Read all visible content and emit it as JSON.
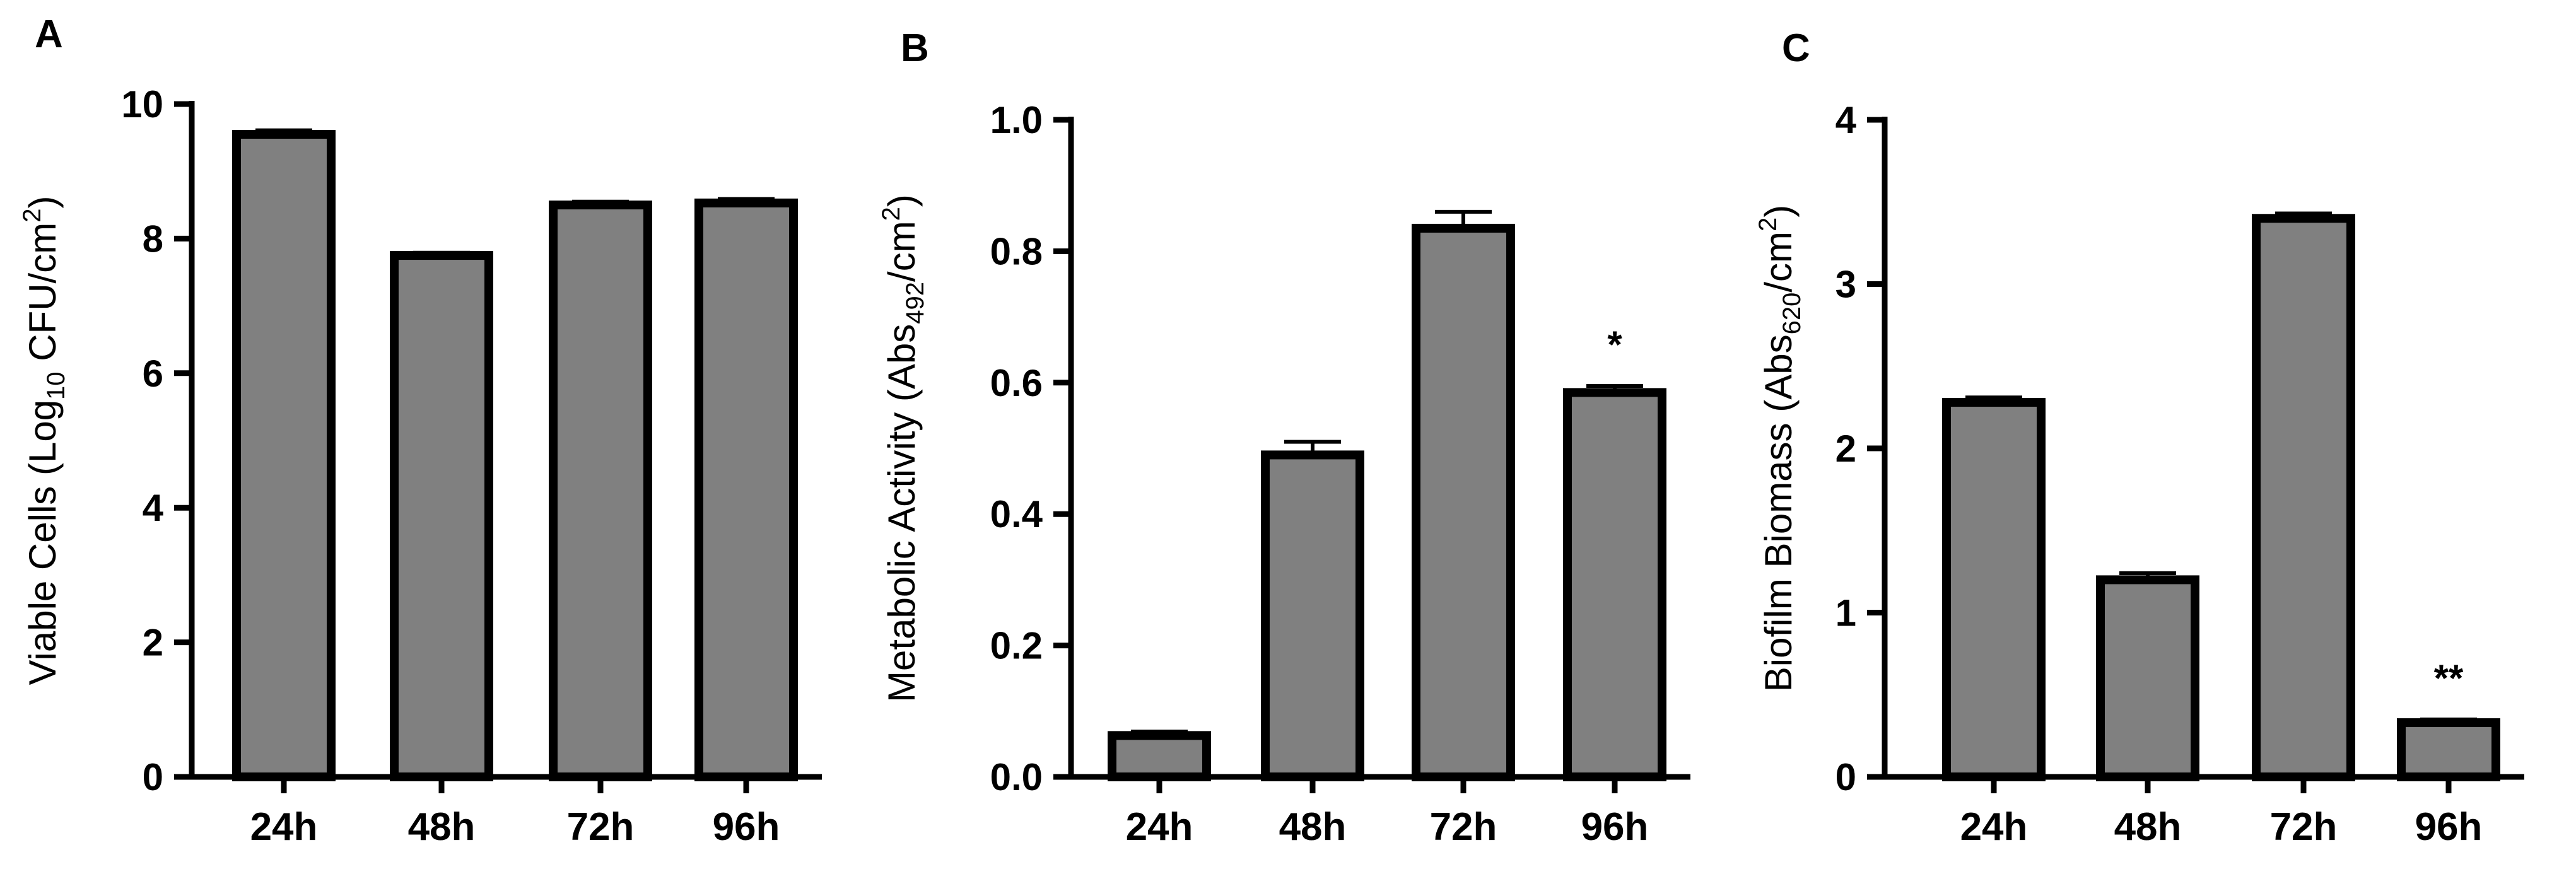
{
  "chart_data": [
    {
      "panel": "A",
      "type": "bar",
      "categories": [
        "24h",
        "48h",
        "72h",
        "96h"
      ],
      "values": [
        9.55,
        7.75,
        8.5,
        8.53
      ],
      "errors": [
        0.06,
        0.04,
        0.05,
        0.06
      ],
      "ylim": [
        0,
        10
      ],
      "yticks": [
        "0",
        "2",
        "4",
        "6",
        "8",
        "10"
      ],
      "ytick_values": [
        0,
        2,
        4,
        6,
        8,
        10
      ],
      "ylabel": {
        "pre": "Viable Cells (Log",
        "sub": "10",
        "mid": " CFU/cm",
        "sup": "2",
        "post": ")"
      },
      "annotations": [
        "",
        "",
        "",
        ""
      ],
      "bar_color": "#808080"
    },
    {
      "panel": "B",
      "type": "bar",
      "categories": [
        "24h",
        "48h",
        "72h",
        "96h"
      ],
      "values": [
        0.063,
        0.49,
        0.835,
        0.585
      ],
      "errors": [
        0.006,
        0.02,
        0.025,
        0.01
      ],
      "ylim": [
        0,
        1.0
      ],
      "yticks": [
        "0.0",
        "0.2",
        "0.4",
        "0.6",
        "0.8",
        "1.0"
      ],
      "ytick_values": [
        0,
        0.2,
        0.4,
        0.6,
        0.8,
        1.0
      ],
      "ylabel": {
        "pre": "Metabolic Activity (Abs",
        "sub": "492",
        "mid": "/cm",
        "sup": "2",
        "post": ")"
      },
      "annotations": [
        "",
        "",
        "",
        "*"
      ],
      "bar_color": "#808080"
    },
    {
      "panel": "C",
      "type": "bar",
      "categories": [
        "24h",
        "48h",
        "72h",
        "96h"
      ],
      "values": [
        2.28,
        1.2,
        3.4,
        0.33
      ],
      "errors": [
        0.03,
        0.04,
        0.03,
        0.02
      ],
      "ylim": [
        0,
        4
      ],
      "yticks": [
        "0",
        "1",
        "2",
        "3",
        "4"
      ],
      "ytick_values": [
        0,
        1,
        2,
        3,
        4
      ],
      "ylabel": {
        "pre": "Biofilm Biomass (Abs",
        "sub": "620",
        "mid": "/cm",
        "sup": "2",
        "post": ")"
      },
      "annotations": [
        "",
        "",
        "",
        "**"
      ],
      "bar_color": "#808080"
    }
  ]
}
